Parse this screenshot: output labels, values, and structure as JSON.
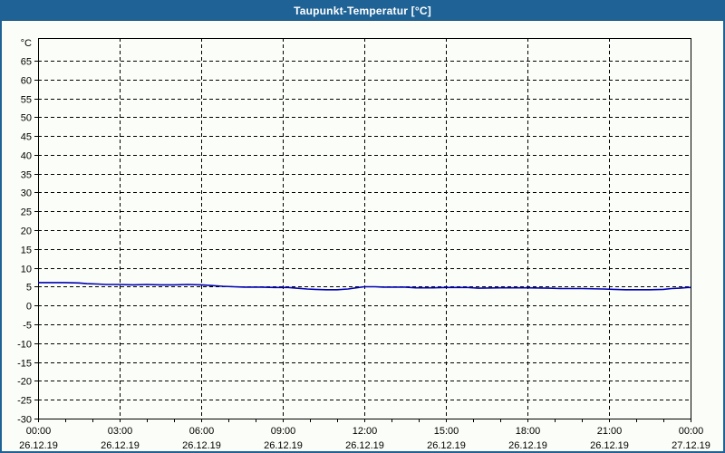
{
  "window": {
    "title": "Taupunkt-Temperatur [°C]"
  },
  "colors": {
    "titlebar_bg": "#1f6396",
    "titlebar_text": "#ffffff",
    "window_border": "#1f6396",
    "background": "#fbfef8",
    "grid": "#000000",
    "series": "#0000b2"
  },
  "chart_data": {
    "type": "line",
    "title": "Taupunkt-Temperatur [°C]",
    "ylabel_unit": "°C",
    "ylim": [
      -30,
      71
    ],
    "grid": "dashed",
    "legend_position": "none",
    "y_ticks": [
      65,
      60,
      55,
      50,
      45,
      40,
      35,
      30,
      25,
      20,
      15,
      10,
      5,
      0,
      -5,
      -10,
      -15,
      -20,
      -25,
      -30
    ],
    "x_hours_range": [
      0,
      24
    ],
    "x_minor_tick_hours": 1,
    "x_ticks": [
      {
        "hour": 0,
        "time": "00:00",
        "date": "26.12.19"
      },
      {
        "hour": 3,
        "time": "03:00",
        "date": "26.12.19"
      },
      {
        "hour": 6,
        "time": "06:00",
        "date": "26.12.19"
      },
      {
        "hour": 9,
        "time": "09:00",
        "date": "26.12.19"
      },
      {
        "hour": 12,
        "time": "12:00",
        "date": "26.12.19"
      },
      {
        "hour": 15,
        "time": "15:00",
        "date": "26.12.19"
      },
      {
        "hour": 18,
        "time": "18:00",
        "date": "26.12.19"
      },
      {
        "hour": 21,
        "time": "21:00",
        "date": "26.12.19"
      },
      {
        "hour": 24,
        "time": "00:00",
        "date": "27.12.19"
      }
    ],
    "series": [
      {
        "name": "taupunkt",
        "color": "#0000b2",
        "stroke_width": 1.6,
        "points": [
          [
            0.0,
            6.1
          ],
          [
            0.5,
            6.1
          ],
          [
            1.0,
            6.1
          ],
          [
            1.5,
            6.0
          ],
          [
            1.8,
            5.8
          ],
          [
            2.2,
            5.7
          ],
          [
            2.5,
            5.6
          ],
          [
            3.0,
            5.6
          ],
          [
            3.5,
            5.5
          ],
          [
            4.0,
            5.6
          ],
          [
            4.5,
            5.5
          ],
          [
            5.0,
            5.5
          ],
          [
            5.5,
            5.6
          ],
          [
            6.0,
            5.5
          ],
          [
            6.4,
            5.3
          ],
          [
            6.8,
            5.1
          ],
          [
            7.2,
            5.0
          ],
          [
            7.6,
            4.9
          ],
          [
            8.2,
            4.9
          ],
          [
            8.7,
            4.8
          ],
          [
            9.2,
            4.8
          ],
          [
            9.5,
            4.6
          ],
          [
            9.9,
            4.4
          ],
          [
            10.2,
            4.3
          ],
          [
            10.6,
            4.2
          ],
          [
            11.0,
            4.2
          ],
          [
            11.4,
            4.4
          ],
          [
            11.7,
            4.7
          ],
          [
            12.0,
            5.0
          ],
          [
            12.4,
            5.0
          ],
          [
            12.7,
            4.9
          ],
          [
            13.5,
            4.9
          ],
          [
            13.9,
            4.7
          ],
          [
            14.5,
            4.7
          ],
          [
            15.0,
            4.8
          ],
          [
            15.8,
            4.8
          ],
          [
            16.2,
            4.6
          ],
          [
            17.0,
            4.7
          ],
          [
            18.0,
            4.7
          ],
          [
            18.8,
            4.6
          ],
          [
            19.2,
            4.5
          ],
          [
            20.0,
            4.5
          ],
          [
            20.8,
            4.4
          ],
          [
            21.2,
            4.3
          ],
          [
            21.6,
            4.2
          ],
          [
            22.5,
            4.2
          ],
          [
            23.0,
            4.3
          ],
          [
            23.3,
            4.5
          ],
          [
            23.6,
            4.6
          ],
          [
            23.9,
            4.8
          ],
          [
            24.0,
            4.8
          ]
        ]
      }
    ]
  }
}
